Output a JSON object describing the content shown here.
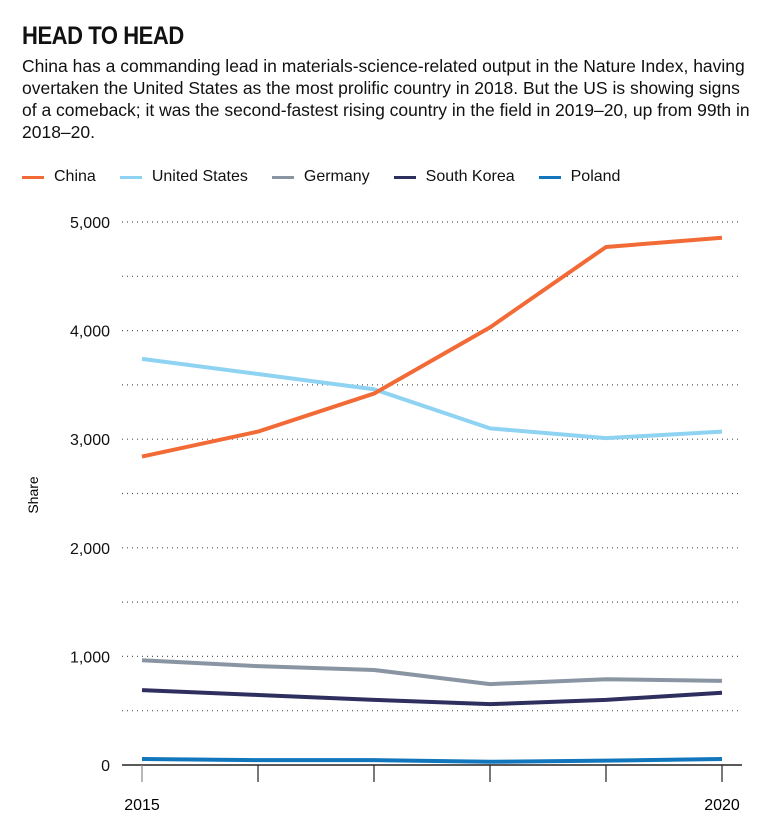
{
  "title": "HEAD TO HEAD",
  "subtitle": "China has a commanding lead in materials-science-related output in the Nature Index, having overtaken the United States as the most prolific country in 2018. But the US is showing signs of a comeback; it was the second-fastest rising country in the field in 2019–20, up from 99th in 2018–20.",
  "chart_data": {
    "type": "line",
    "x": [
      2015,
      2016,
      2017,
      2018,
      2019,
      2020
    ],
    "x_tick_labels": [
      "2015",
      "2020"
    ],
    "ylabel": "Share",
    "ylim": [
      0,
      5000
    ],
    "y_ticks": [
      0,
      1000,
      2000,
      3000,
      4000,
      5000
    ],
    "y_tick_labels": [
      "0",
      "1,000",
      "2,000",
      "3,000",
      "4,000",
      "5,000"
    ],
    "grid": "dotted horizontal every 500",
    "legend": "top",
    "series": [
      {
        "name": "China",
        "color": "#f26a36",
        "values": [
          2840,
          3070,
          3420,
          4030,
          4770,
          4855
        ]
      },
      {
        "name": "United States",
        "color": "#8fd3f2",
        "values": [
          3740,
          3600,
          3460,
          3100,
          3010,
          3070
        ]
      },
      {
        "name": "Germany",
        "color": "#8a95a3",
        "values": [
          965,
          910,
          875,
          745,
          790,
          775
        ]
      },
      {
        "name": "South Korea",
        "color": "#2e2f5e",
        "values": [
          690,
          645,
          600,
          560,
          600,
          665
        ]
      },
      {
        "name": "Poland",
        "color": "#1176bc",
        "values": [
          55,
          45,
          45,
          30,
          40,
          55
        ]
      }
    ]
  }
}
